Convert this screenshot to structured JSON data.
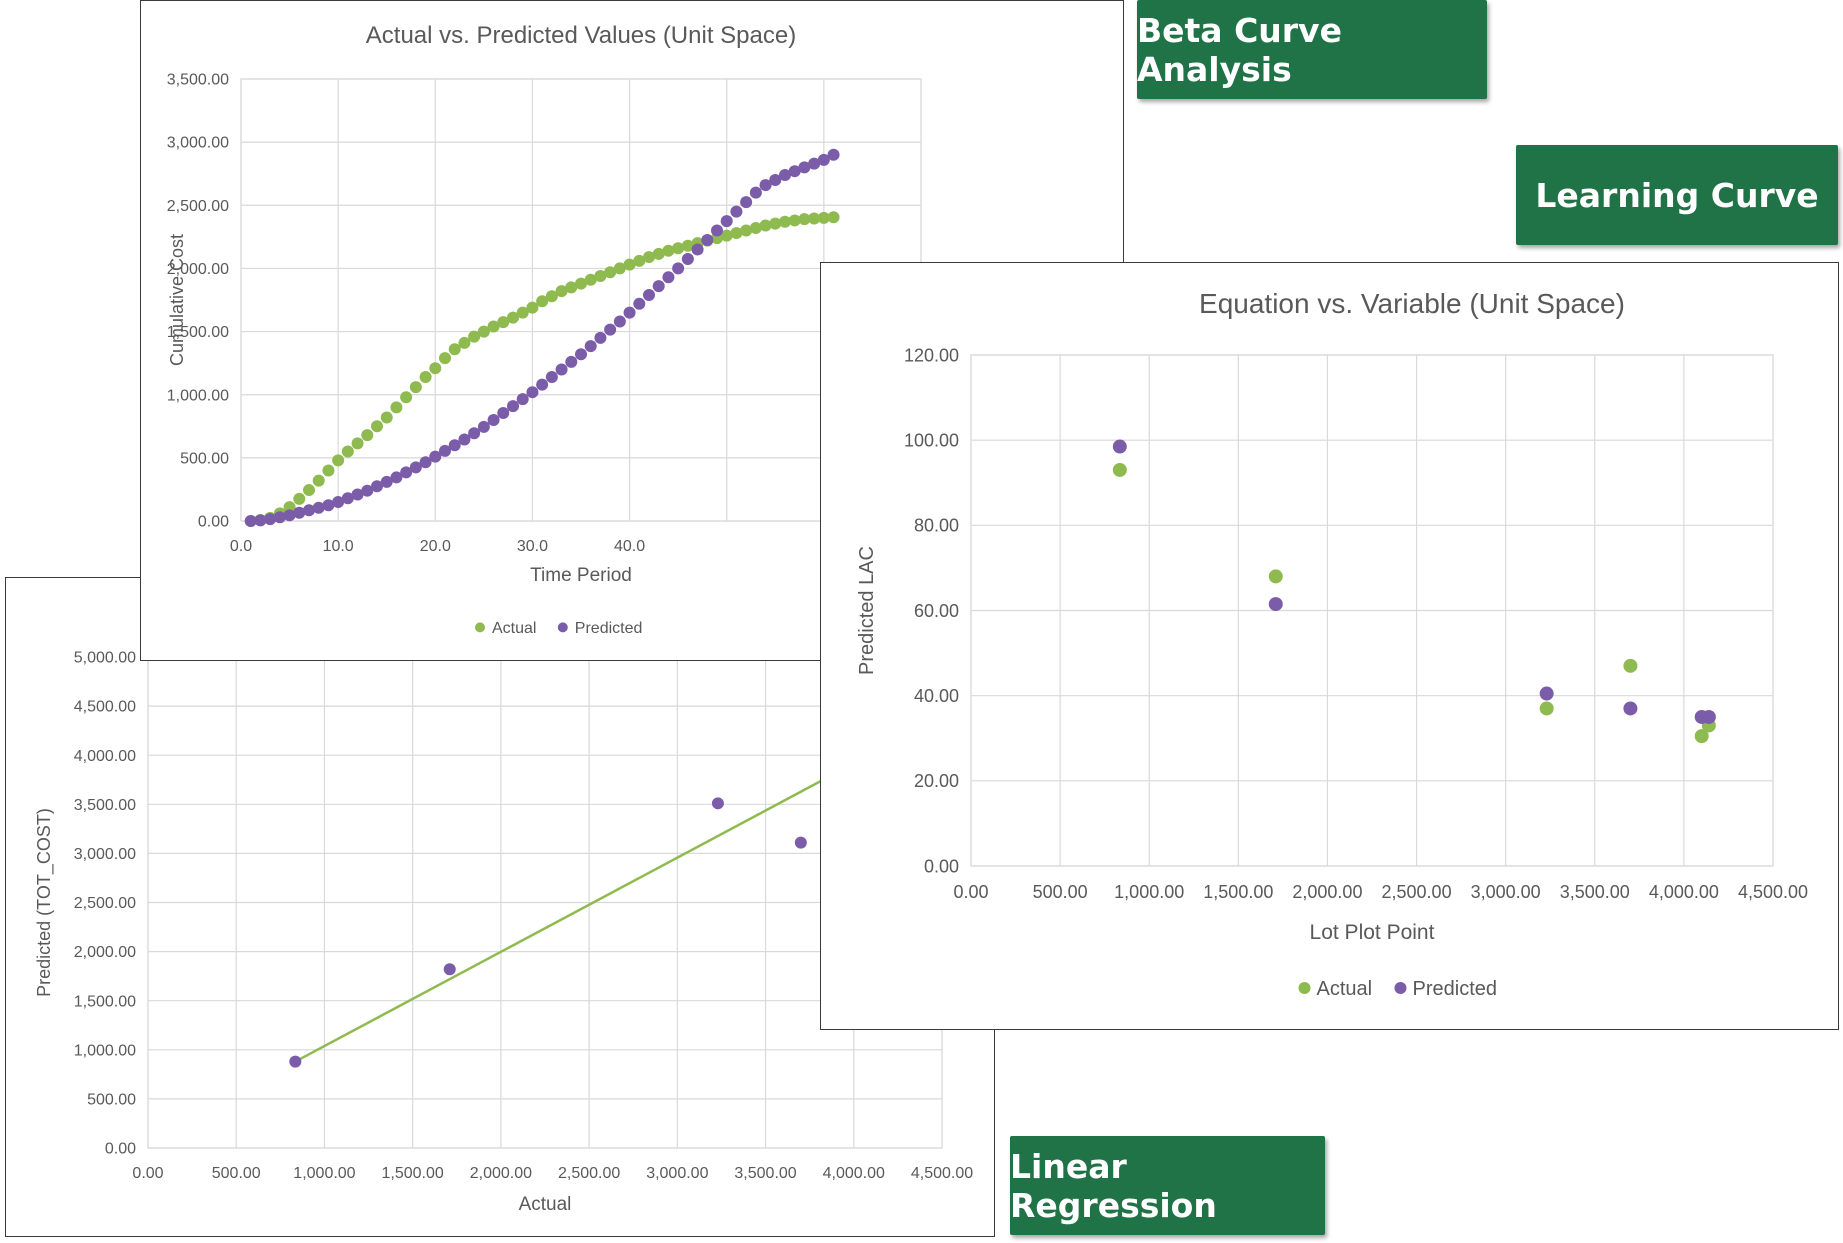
{
  "badges": {
    "beta": "Beta Curve Analysis",
    "learning": "Learning Curve",
    "linear": "Linear Regression"
  },
  "colors": {
    "actual": "#8fba4f",
    "predicted": "#7b5ca8",
    "grid": "#d9d9d9",
    "axis_text": "#595959"
  },
  "chart_data": [
    {
      "id": "beta",
      "type": "scatter",
      "title": "Actual vs. Predicted Values (Unit Space)",
      "xlabel": "Time Period",
      "ylabel": "Cumulative Cost",
      "xlim": [
        0,
        70
      ],
      "ylim": [
        0,
        3500
      ],
      "xticks": [
        "0.0",
        "10.0",
        "20.0",
        "30.0",
        "40.0"
      ],
      "yticks": [
        "0.00",
        "500.00",
        "1,000.00",
        "1,500.00",
        "2,000.00",
        "2,500.00",
        "3,000.00",
        "3,500.00"
      ],
      "legend": "bottom",
      "series": [
        {
          "name": "Actual",
          "x": [
            1,
            2,
            3,
            4,
            5,
            6,
            7,
            8,
            9,
            10,
            11,
            12,
            13,
            14,
            15,
            16,
            17,
            18,
            19,
            20,
            21,
            22,
            23,
            24,
            25,
            26,
            27,
            28,
            29,
            30,
            31,
            32,
            33,
            34,
            35,
            36,
            37,
            38,
            39,
            40,
            41,
            42,
            43,
            44,
            45,
            46,
            47,
            48,
            49,
            50,
            51,
            52,
            53,
            54,
            55,
            56,
            57,
            58,
            59,
            60,
            61
          ],
          "y": [
            0,
            8,
            25,
            60,
            110,
            175,
            245,
            320,
            400,
            480,
            550,
            615,
            680,
            750,
            820,
            900,
            980,
            1060,
            1140,
            1210,
            1290,
            1360,
            1410,
            1460,
            1500,
            1540,
            1575,
            1610,
            1650,
            1690,
            1740,
            1780,
            1820,
            1850,
            1880,
            1910,
            1940,
            1970,
            2000,
            2030,
            2060,
            2090,
            2115,
            2140,
            2160,
            2180,
            2200,
            2220,
            2240,
            2260,
            2280,
            2300,
            2320,
            2340,
            2355,
            2370,
            2380,
            2390,
            2395,
            2400,
            2405
          ]
        },
        {
          "name": "Predicted",
          "x": [
            1,
            2,
            3,
            4,
            5,
            6,
            7,
            8,
            9,
            10,
            11,
            12,
            13,
            14,
            15,
            16,
            17,
            18,
            19,
            20,
            21,
            22,
            23,
            24,
            25,
            26,
            27,
            28,
            29,
            30,
            31,
            32,
            33,
            34,
            35,
            36,
            37,
            38,
            39,
            40,
            41,
            42,
            43,
            44,
            45,
            46,
            47,
            48,
            49,
            50,
            51,
            52,
            53,
            54,
            55,
            56,
            57,
            58,
            59,
            60,
            61
          ],
          "y": [
            0,
            5,
            15,
            30,
            45,
            65,
            85,
            105,
            125,
            150,
            180,
            210,
            240,
            275,
            310,
            345,
            385,
            425,
            465,
            510,
            555,
            600,
            645,
            695,
            745,
            800,
            855,
            910,
            965,
            1020,
            1080,
            1140,
            1200,
            1260,
            1320,
            1385,
            1450,
            1515,
            1580,
            1650,
            1720,
            1790,
            1860,
            1930,
            2000,
            2075,
            2150,
            2225,
            2300,
            2375,
            2450,
            2525,
            2600,
            2660,
            2700,
            2740,
            2770,
            2800,
            2830,
            2860,
            2900
          ]
        }
      ]
    },
    {
      "id": "learning",
      "type": "scatter",
      "title": "Equation vs. Variable (Unit Space)",
      "xlabel": "Lot Plot Point",
      "ylabel": "Predicted LAC",
      "xlim": [
        0,
        4500
      ],
      "ylim": [
        0,
        120
      ],
      "xticks": [
        "0.00",
        "500.00",
        "1,000.00",
        "1,500.00",
        "2,000.00",
        "2,500.00",
        "3,000.00",
        "3,500.00",
        "4,000.00",
        "4,500.00"
      ],
      "yticks": [
        "0.00",
        "20.00",
        "40.00",
        "60.00",
        "80.00",
        "100.00",
        "120.00"
      ],
      "legend": "bottom",
      "series": [
        {
          "name": "Actual",
          "x": [
            835,
            1710,
            3230,
            3700,
            4100,
            4140
          ],
          "y": [
            93,
            68,
            37,
            47,
            30.5,
            33
          ]
        },
        {
          "name": "Predicted",
          "x": [
            835,
            1710,
            3230,
            3700,
            4100,
            4140
          ],
          "y": [
            98.5,
            61.5,
            40.5,
            37,
            35,
            35
          ]
        }
      ]
    },
    {
      "id": "linear",
      "type": "scatter",
      "xlabel": "Actual",
      "ylabel": "Predicted (TOT_COST)",
      "xlim": [
        0,
        4500
      ],
      "ylim": [
        0,
        5000
      ],
      "xticks": [
        "0.00",
        "500.00",
        "1,000.00",
        "1,500.00",
        "2,000.00",
        "2,500.00",
        "3,000.00",
        "3,500.00",
        "4,000.00",
        "4,500.00"
      ],
      "yticks": [
        "0.00",
        "500.00",
        "1,000.00",
        "1,500.00",
        "2,000.00",
        "2,500.00",
        "3,000.00",
        "3,500.00",
        "4,000.00",
        "4,500.00",
        "5,000.00"
      ],
      "series": [
        {
          "name": "Predicted",
          "x": [
            835,
            1710,
            3230,
            3700
          ],
          "y": [
            880,
            1820,
            3510,
            3110
          ]
        }
      ],
      "fit_line": {
        "x": [
          835,
          3900
        ],
        "y": [
          880,
          3820
        ]
      }
    }
  ]
}
